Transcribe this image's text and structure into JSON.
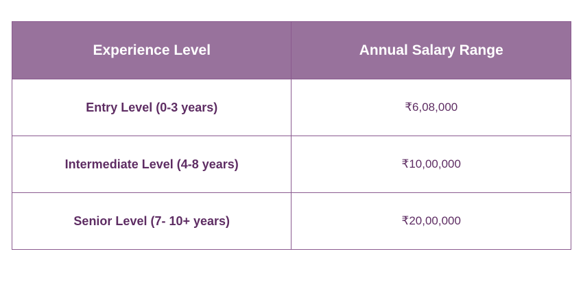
{
  "table": {
    "headers": [
      "Experience Level",
      "Annual Salary Range"
    ],
    "rows": [
      {
        "level": "Entry Level (0-3 years)",
        "salary": "₹6,08,000"
      },
      {
        "level": "Intermediate Level (4-8 years)",
        "salary": "₹10,00,000"
      },
      {
        "level": "Senior Level (7- 10+ years)",
        "salary": "₹20,00,000"
      }
    ]
  },
  "colors": {
    "header_bg": "#98729c",
    "header_text": "#ffffff",
    "body_text": "#5e2d63",
    "border": "#8a5a8f"
  }
}
